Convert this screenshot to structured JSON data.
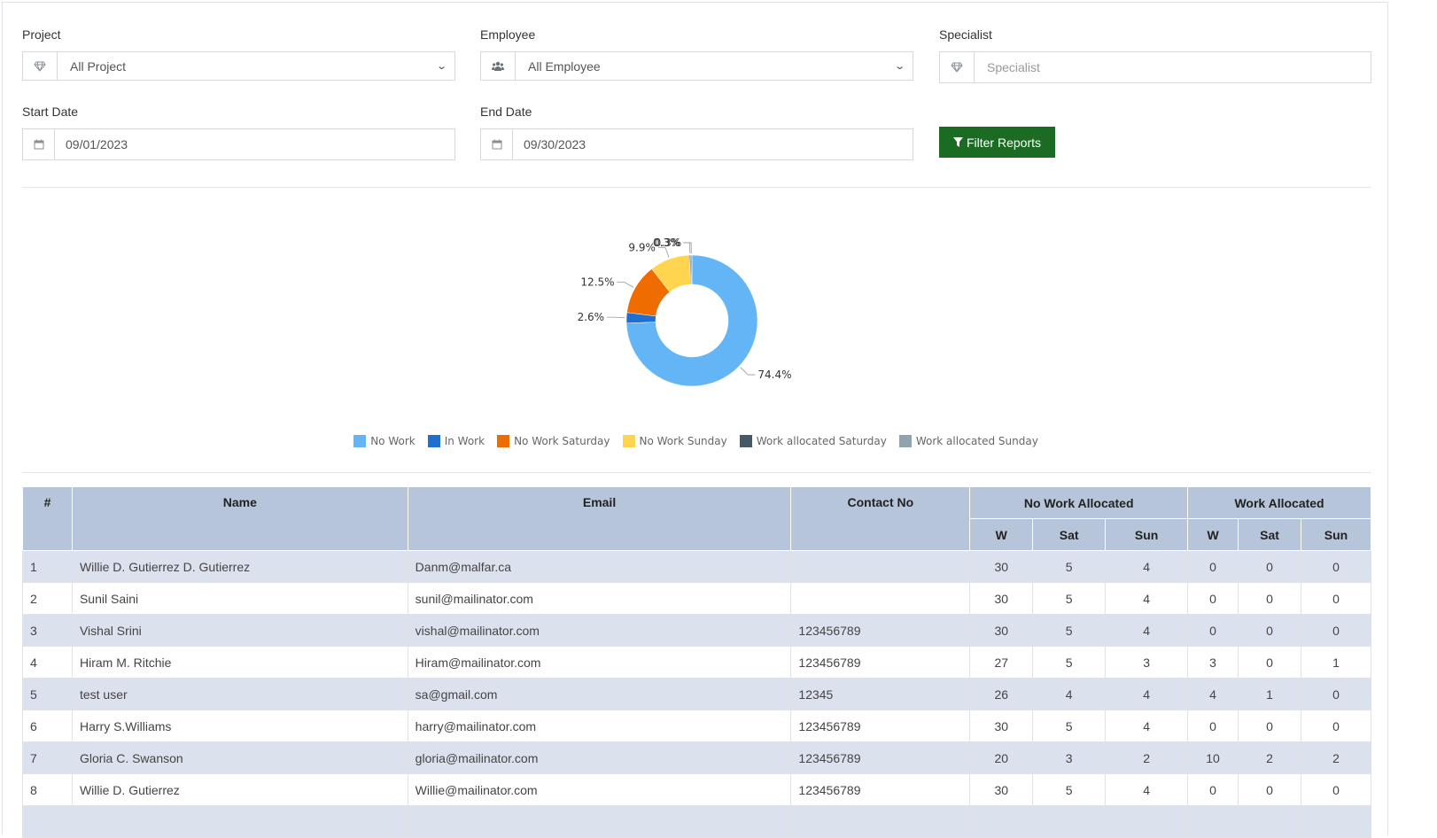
{
  "filters": {
    "project": {
      "label": "Project",
      "value": "All Project",
      "icon": "diamond-icon"
    },
    "employee": {
      "label": "Employee",
      "value": "All Employee",
      "icon": "users-icon"
    },
    "specialist": {
      "label": "Specialist",
      "placeholder": "Specialist",
      "icon": "diamond-icon"
    },
    "start_date": {
      "label": "Start Date",
      "value": "09/01/2023",
      "icon": "calendar-icon"
    },
    "end_date": {
      "label": "End Date",
      "value": "09/30/2023",
      "icon": "calendar-icon"
    },
    "filter_button": "Filter Reports"
  },
  "chart_data": {
    "type": "pie",
    "donut": true,
    "categories": [
      "No Work",
      "In Work",
      "No Work Saturday",
      "No Work Sunday",
      "Work allocated Saturday",
      "Work allocated Sunday"
    ],
    "values": [
      74.4,
      2.6,
      12.5,
      9.9,
      0.3,
      0.3
    ],
    "labels": [
      "74.4%",
      "2.6%",
      "12.5%",
      "9.9%",
      "0.3%",
      "0.3%"
    ],
    "colors": [
      "#64b5f6",
      "#1e6fcf",
      "#ef6c00",
      "#ffd54f",
      "#455a64",
      "#90a4ae"
    ],
    "legend_position": "bottom"
  },
  "table": {
    "headers": {
      "index": "#",
      "name": "Name",
      "email": "Email",
      "contact": "Contact No",
      "no_work": "No Work Allocated",
      "work": "Work Allocated",
      "w": "W",
      "sat": "Sat",
      "sun": "Sun"
    },
    "rows": [
      {
        "n": "1",
        "name": "Willie D. Gutierrez D. Gutierrez",
        "email": "Danm@malfar.ca",
        "contact": "",
        "nw_w": "30",
        "nw_sat": "5",
        "nw_sun": "4",
        "w_w": "0",
        "w_sat": "0",
        "w_sun": "0"
      },
      {
        "n": "2",
        "name": "Sunil Saini",
        "email": "sunil@mailinator.com",
        "contact": "",
        "nw_w": "30",
        "nw_sat": "5",
        "nw_sun": "4",
        "w_w": "0",
        "w_sat": "0",
        "w_sun": "0"
      },
      {
        "n": "3",
        "name": "Vishal Srini",
        "email": "vishal@mailinator.com",
        "contact": "123456789",
        "nw_w": "30",
        "nw_sat": "5",
        "nw_sun": "4",
        "w_w": "0",
        "w_sat": "0",
        "w_sun": "0"
      },
      {
        "n": "4",
        "name": "Hiram M. Ritchie",
        "email": "Hiram@mailinator.com",
        "contact": "123456789",
        "nw_w": "27",
        "nw_sat": "5",
        "nw_sun": "3",
        "w_w": "3",
        "w_sat": "0",
        "w_sun": "1"
      },
      {
        "n": "5",
        "name": "test user",
        "email": "sa@gmail.com",
        "contact": "12345",
        "nw_w": "26",
        "nw_sat": "4",
        "nw_sun": "4",
        "w_w": "4",
        "w_sat": "1",
        "w_sun": "0"
      },
      {
        "n": "6",
        "name": "Harry S.Williams",
        "email": "harry@mailinator.com",
        "contact": "123456789",
        "nw_w": "30",
        "nw_sat": "5",
        "nw_sun": "4",
        "w_w": "0",
        "w_sat": "0",
        "w_sun": "0"
      },
      {
        "n": "7",
        "name": "Gloria C. Swanson",
        "email": "gloria@mailinator.com",
        "contact": "123456789",
        "nw_w": "20",
        "nw_sat": "3",
        "nw_sun": "2",
        "w_w": "10",
        "w_sat": "2",
        "w_sun": "2"
      },
      {
        "n": "8",
        "name": "Willie D. Gutierrez",
        "email": "Willie@mailinator.com",
        "contact": "123456789",
        "nw_w": "30",
        "nw_sat": "5",
        "nw_sun": "4",
        "w_w": "0",
        "w_sat": "0",
        "w_sun": "0"
      }
    ]
  }
}
